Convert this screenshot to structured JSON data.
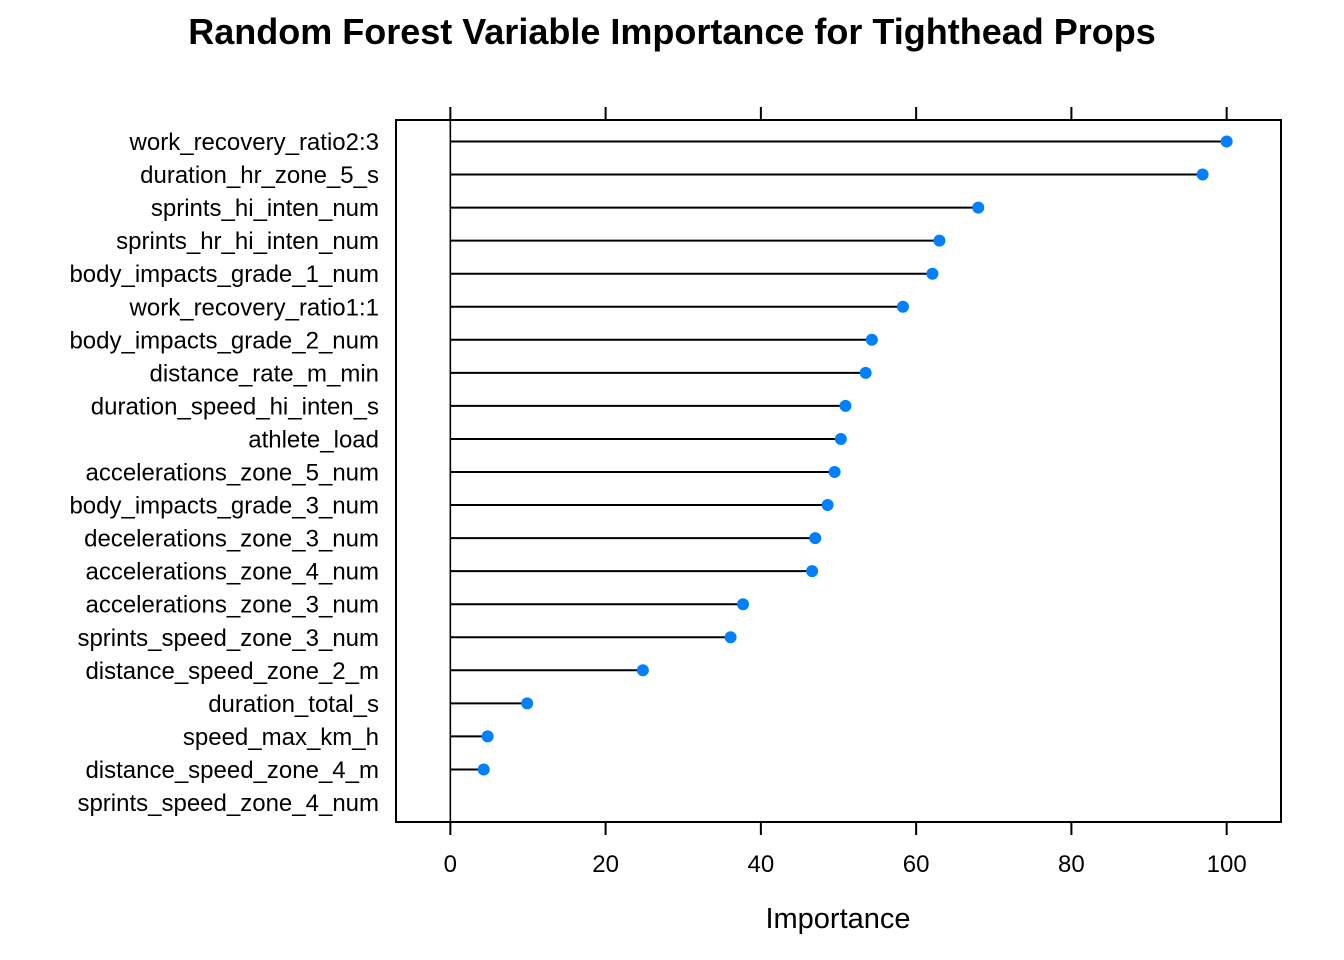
{
  "chart_data": {
    "type": "dot",
    "title": "Random Forest Variable Importance for Tighthead Props",
    "xlabel": "Importance",
    "ylabel": "",
    "xlim": [
      -7,
      107
    ],
    "x_ticks": [
      0,
      20,
      40,
      60,
      80,
      100
    ],
    "x_tick_labels": [
      "0",
      "20",
      "40",
      "60",
      "80",
      "100"
    ],
    "grid": false,
    "marker_color": "#0080FF",
    "line_color": "#000000",
    "categories": [
      "work_recovery_ratio2:3",
      "duration_hr_zone_5_s",
      "sprints_hi_inten_num",
      "sprints_hr_hi_inten_num",
      "body_impacts_grade_1_num",
      "work_recovery_ratio1:1",
      "body_impacts_grade_2_num",
      "distance_rate_m_min",
      "duration_speed_hi_inten_s",
      "athlete_load",
      "accelerations_zone_5_num",
      "body_impacts_grade_3_num",
      "decelerations_zone_3_num",
      "accelerations_zone_4_num",
      "accelerations_zone_3_num",
      "sprints_speed_zone_3_num",
      "distance_speed_zone_2_m",
      "duration_total_s",
      "speed_max_km_h",
      "distance_speed_zone_4_m",
      "sprints_speed_zone_4_num"
    ],
    "values": [
      100.0,
      96.9,
      68.0,
      63.0,
      62.1,
      58.3,
      54.3,
      53.5,
      50.9,
      50.3,
      49.5,
      48.6,
      47.0,
      46.6,
      37.7,
      36.1,
      24.8,
      9.9,
      4.8,
      4.3,
      0.0
    ]
  }
}
